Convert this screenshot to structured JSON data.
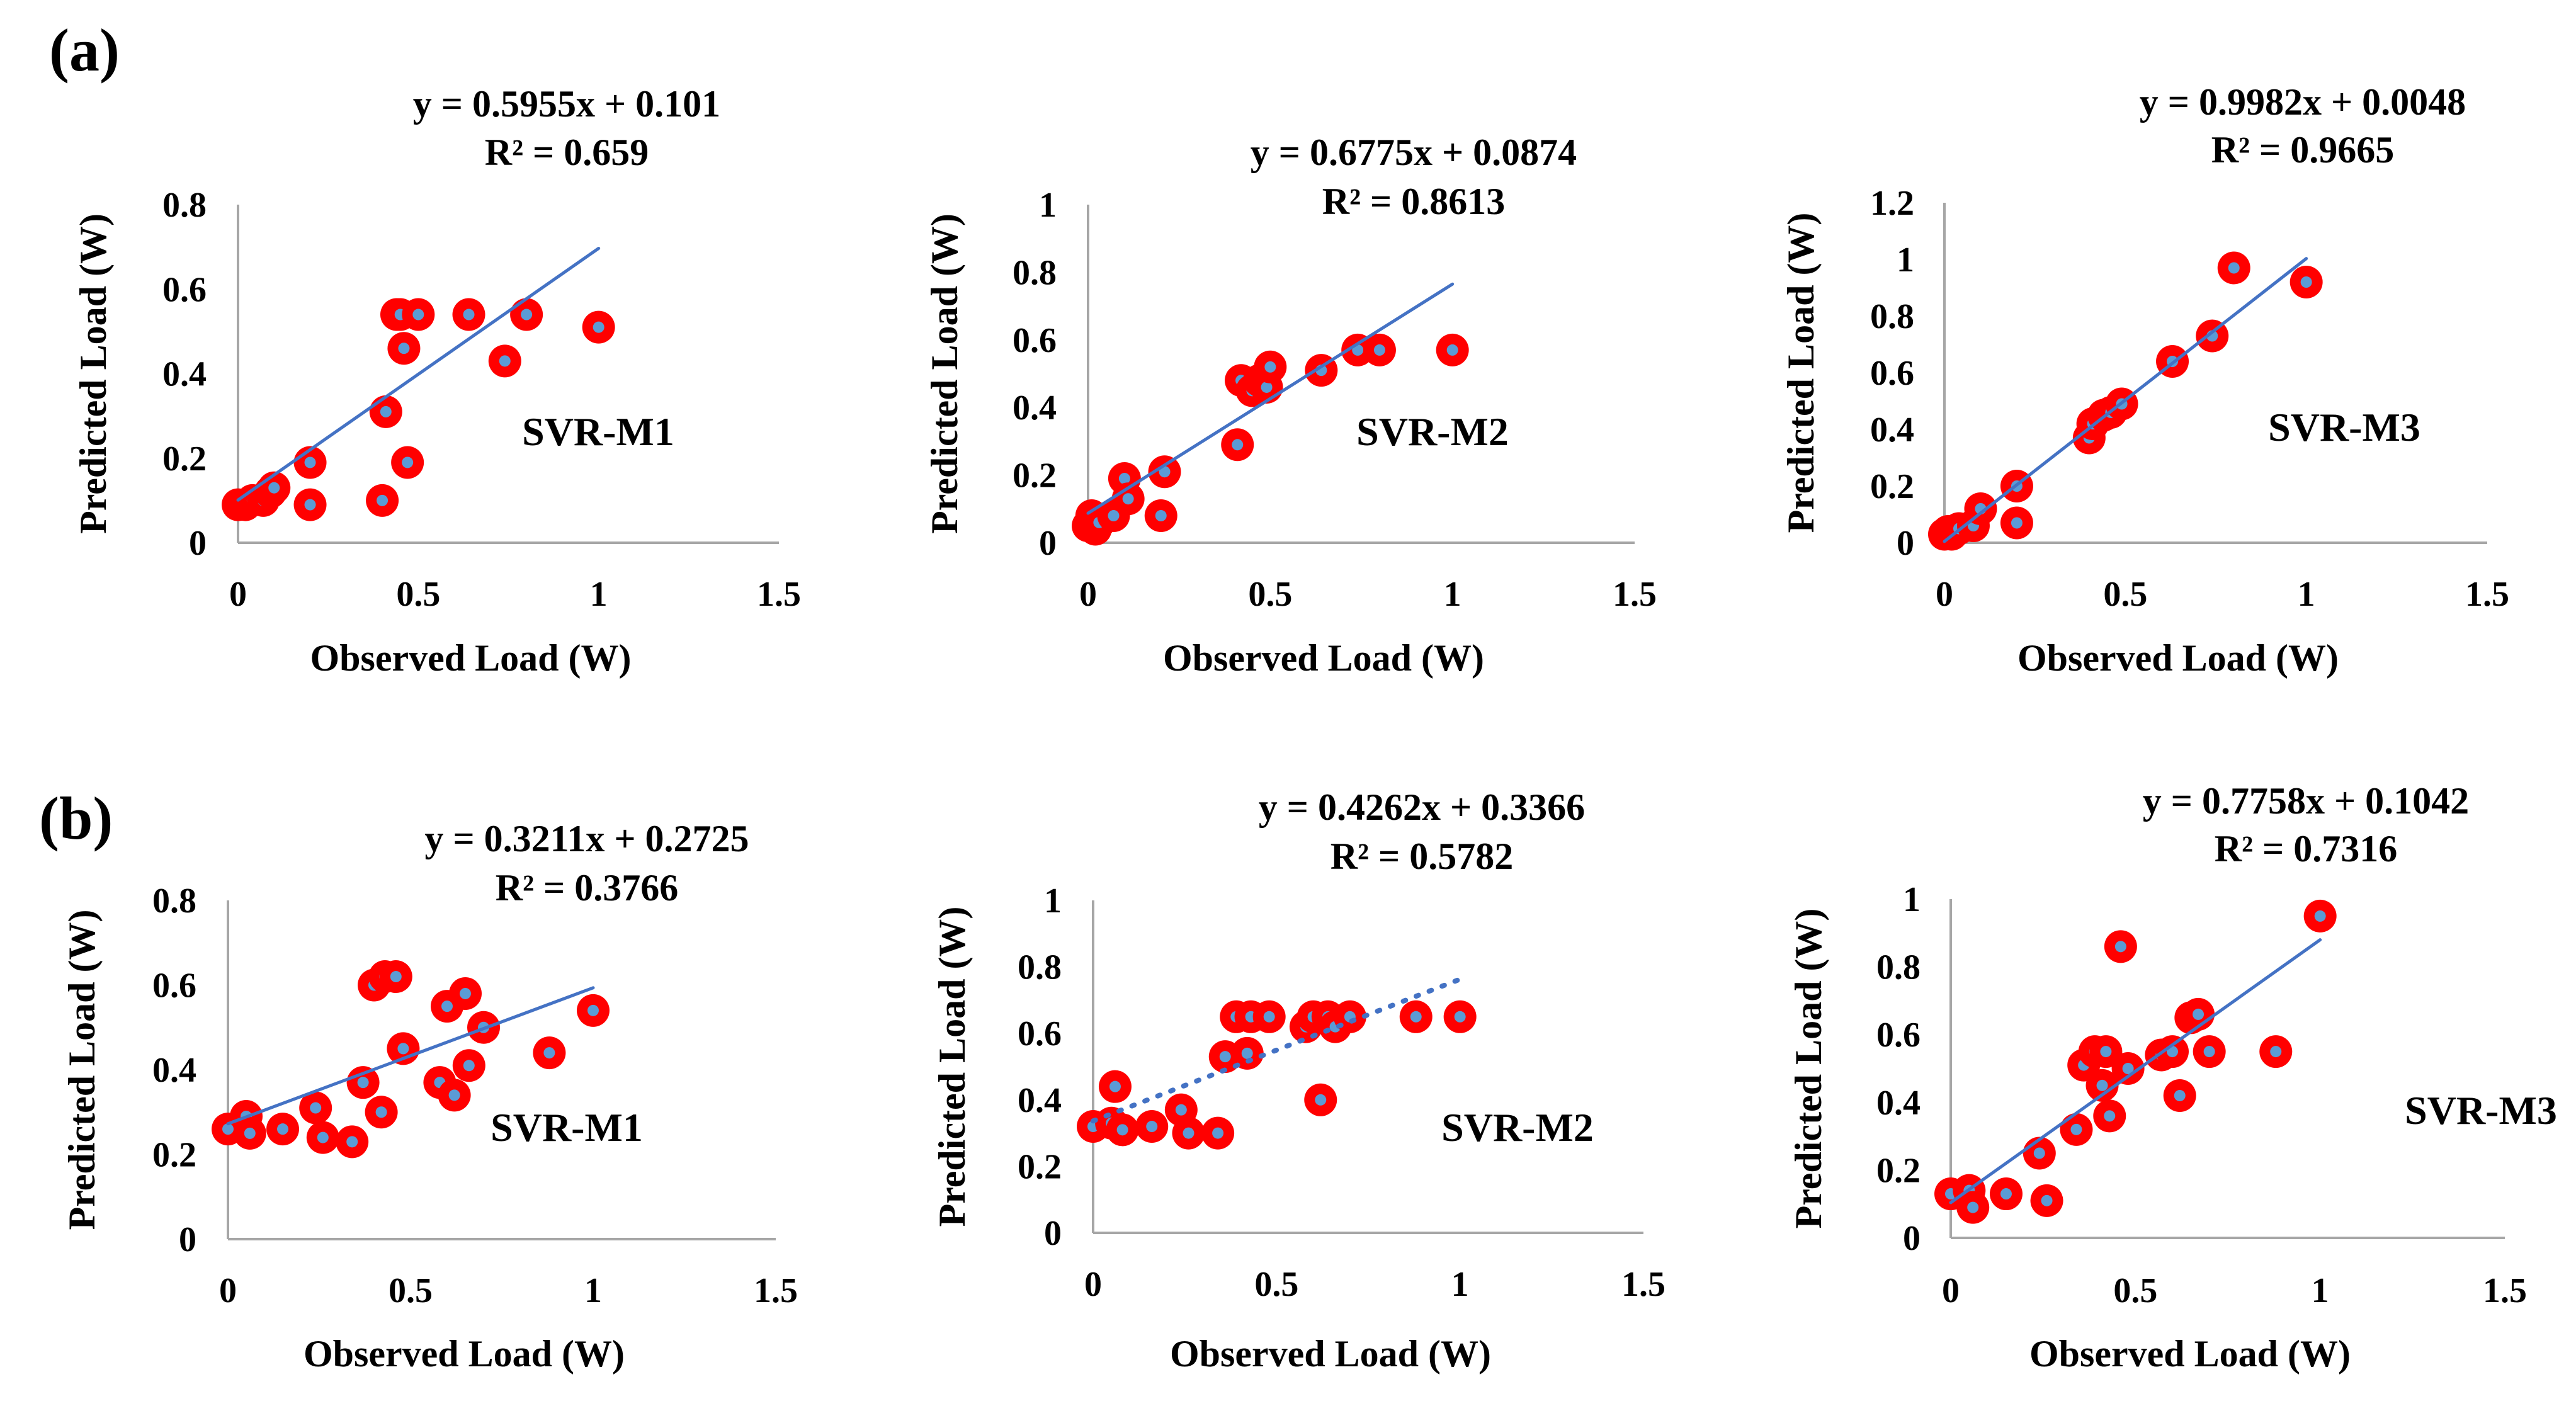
{
  "panel_labels": [
    "(a)",
    "(b)"
  ],
  "colors": {
    "marker_ring": "#ff0000",
    "marker_dot": "#5b9bd5",
    "trendline": "#4472c4",
    "axis": "#a6a6a6"
  },
  "chart_data": [
    {
      "type": "scatter",
      "panel": "(a)",
      "model_label": "SVR-M1",
      "equation": "y = 0.5955x + 0.101",
      "r2": "R² = 0.659",
      "slope": 0.5955,
      "intercept": 0.101,
      "xlabel": "Observed Load (W)",
      "ylabel": "Predicted Load (W)",
      "xlim": [
        0,
        1.5
      ],
      "ylim": [
        0,
        0.8
      ],
      "xticks": [
        0,
        0.5,
        1,
        1.5
      ],
      "xtick_labels": [
        "0",
        "0.5",
        "1",
        "1.5"
      ],
      "yticks": [
        0,
        0.2,
        0.4,
        0.6,
        0.8
      ],
      "ytick_labels": [
        "0",
        "0.2",
        "0.4",
        "0.6",
        "0.8"
      ],
      "trendline_style": "solid",
      "x": [
        0,
        0.02,
        0.04,
        0.07,
        0.09,
        0.1,
        0.2,
        0.2,
        0.4,
        0.41,
        0.44,
        0.45,
        0.46,
        0.47,
        0.5,
        0.64,
        0.74,
        0.8,
        1.0
      ],
      "y": [
        0.09,
        0.09,
        0.1,
        0.1,
        0.12,
        0.13,
        0.19,
        0.09,
        0.1,
        0.31,
        0.54,
        0.54,
        0.46,
        0.19,
        0.54,
        0.54,
        0.43,
        0.54,
        0.51
      ]
    },
    {
      "type": "scatter",
      "panel": "(a)",
      "model_label": "SVR-M2",
      "equation": "y = 0.6775x + 0.0874",
      "r2": "R² = 0.8613",
      "slope": 0.6775,
      "intercept": 0.0874,
      "xlabel": "Observed Load (W)",
      "ylabel": "Predicted Load (W)",
      "xlim": [
        0,
        1.5
      ],
      "ylim": [
        0,
        1
      ],
      "xticks": [
        0,
        0.5,
        1,
        1.5
      ],
      "xtick_labels": [
        "0",
        "0.5",
        "1",
        "1.5"
      ],
      "yticks": [
        0,
        0.2,
        0.4,
        0.6,
        0.8,
        1
      ],
      "ytick_labels": [
        "0",
        "0.2",
        "0.4",
        "0.6",
        "0.8",
        "1"
      ],
      "trendline_style": "solid",
      "x": [
        0,
        0.01,
        0.02,
        0.03,
        0.07,
        0.1,
        0.11,
        0.2,
        0.21,
        0.41,
        0.42,
        0.45,
        0.47,
        0.49,
        0.5,
        0.64,
        0.74,
        0.8,
        1.0
      ],
      "y": [
        0.05,
        0.08,
        0.04,
        0.06,
        0.08,
        0.19,
        0.13,
        0.08,
        0.21,
        0.29,
        0.48,
        0.45,
        0.48,
        0.46,
        0.52,
        0.51,
        0.57,
        0.57,
        0.57
      ]
    },
    {
      "type": "scatter",
      "panel": "(a)",
      "model_label": "SVR-M3",
      "equation": "y = 0.9982x + 0.0048",
      "r2": "R² = 0.9665",
      "slope": 0.9982,
      "intercept": 0.0048,
      "xlabel": "Observed Load (W)",
      "ylabel": "Predicted Load (W)",
      "xlim": [
        0,
        1.5
      ],
      "ylim": [
        0,
        1.2
      ],
      "xticks": [
        0,
        0.5,
        1,
        1.5
      ],
      "xtick_labels": [
        "0",
        "0.5",
        "1",
        "1.5"
      ],
      "yticks": [
        0,
        0.2,
        0.4,
        0.6,
        0.8,
        1,
        1.2
      ],
      "ytick_labels": [
        "0",
        "0.2",
        "0.4",
        "0.6",
        "0.8",
        "1",
        "1.2"
      ],
      "trendline_style": "solid",
      "x": [
        0,
        0.01,
        0.02,
        0.04,
        0.08,
        0.1,
        0.2,
        0.2,
        0.4,
        0.41,
        0.44,
        0.46,
        0.49,
        0.63,
        0.74,
        0.8,
        1.0
      ],
      "y": [
        0.03,
        0.04,
        0.03,
        0.05,
        0.06,
        0.12,
        0.2,
        0.07,
        0.37,
        0.42,
        0.45,
        0.46,
        0.49,
        0.64,
        0.73,
        0.97,
        0.92
      ]
    },
    {
      "type": "scatter",
      "panel": "(b)",
      "model_label": "SVR-M1",
      "equation": "y = 0.3211x + 0.2725",
      "r2": "R² = 0.3766",
      "slope": 0.3211,
      "intercept": 0.2725,
      "xlabel": "Observed Load (W)",
      "ylabel": "Predicted Load (W)",
      "xlim": [
        0,
        1.5
      ],
      "ylim": [
        0,
        0.8
      ],
      "xticks": [
        0,
        0.5,
        1,
        1.5
      ],
      "xtick_labels": [
        "0",
        "0.5",
        "1",
        "1.5"
      ],
      "yticks": [
        0,
        0.2,
        0.4,
        0.6,
        0.8
      ],
      "ytick_labels": [
        "0",
        "0.2",
        "0.4",
        "0.6",
        "0.8"
      ],
      "trendline_style": "solid",
      "x": [
        0,
        0.05,
        0.06,
        0.15,
        0.24,
        0.26,
        0.34,
        0.37,
        0.4,
        0.42,
        0.43,
        0.46,
        0.48,
        0.58,
        0.6,
        0.62,
        0.65,
        0.66,
        0.7,
        0.88,
        1.0
      ],
      "y": [
        0.26,
        0.29,
        0.25,
        0.26,
        0.31,
        0.24,
        0.23,
        0.37,
        0.6,
        0.3,
        0.62,
        0.62,
        0.45,
        0.37,
        0.55,
        0.34,
        0.58,
        0.41,
        0.5,
        0.44,
        0.54
      ]
    },
    {
      "type": "scatter",
      "panel": "(b)",
      "model_label": "SVR-M2",
      "equation": "y = 0.4262x + 0.3366",
      "r2": "R² = 0.5782",
      "slope": 0.4262,
      "intercept": 0.3366,
      "xlabel": "Observed Load (W)",
      "ylabel": "Predicted Load (W)",
      "xlim": [
        0,
        1.5
      ],
      "ylim": [
        0,
        1
      ],
      "xticks": [
        0,
        0.5,
        1,
        1.5
      ],
      "xtick_labels": [
        "0",
        "0.5",
        "1",
        "1.5"
      ],
      "yticks": [
        0,
        0.2,
        0.4,
        0.6,
        0.8,
        1
      ],
      "ytick_labels": [
        "0",
        "0.2",
        "0.4",
        "0.6",
        "0.8",
        "1"
      ],
      "trendline_style": "dotted",
      "x": [
        0,
        0.05,
        0.06,
        0.08,
        0.16,
        0.24,
        0.26,
        0.34,
        0.36,
        0.39,
        0.42,
        0.43,
        0.48,
        0.58,
        0.6,
        0.62,
        0.64,
        0.66,
        0.7,
        0.88,
        1.0
      ],
      "y": [
        0.32,
        0.33,
        0.44,
        0.31,
        0.32,
        0.37,
        0.3,
        0.3,
        0.53,
        0.65,
        0.54,
        0.65,
        0.65,
        0.62,
        0.65,
        0.4,
        0.65,
        0.62,
        0.65,
        0.65,
        0.65
      ]
    },
    {
      "type": "scatter",
      "panel": "(b)",
      "model_label": "SVR-M3",
      "equation": "y = 0.7758x + 0.1042",
      "r2": "R² = 0.7316",
      "slope": 0.7758,
      "intercept": 0.1042,
      "xlabel": "Observed Load (W)",
      "ylabel": "Predicted Load (W)",
      "xlim": [
        0,
        1.5
      ],
      "ylim": [
        0,
        1
      ],
      "xticks": [
        0,
        0.5,
        1,
        1.5
      ],
      "xtick_labels": [
        "0",
        "0.5",
        "1",
        "1.5"
      ],
      "yticks": [
        0,
        0.2,
        0.4,
        0.6,
        0.8,
        1
      ],
      "ytick_labels": [
        "0",
        "0.2",
        "0.4",
        "0.6",
        "0.8",
        "1"
      ],
      "trendline_style": "solid",
      "x": [
        0,
        0.05,
        0.06,
        0.15,
        0.24,
        0.26,
        0.34,
        0.36,
        0.39,
        0.41,
        0.42,
        0.43,
        0.46,
        0.48,
        0.57,
        0.6,
        0.62,
        0.65,
        0.67,
        0.7,
        0.88,
        1.0
      ],
      "y": [
        0.13,
        0.14,
        0.09,
        0.13,
        0.25,
        0.11,
        0.32,
        0.51,
        0.55,
        0.45,
        0.55,
        0.36,
        0.86,
        0.5,
        0.54,
        0.55,
        0.42,
        0.65,
        0.66,
        0.55,
        0.55,
        0.95
      ]
    }
  ]
}
